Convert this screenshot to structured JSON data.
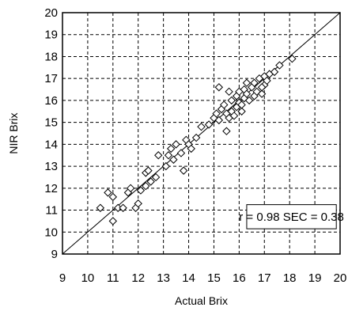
{
  "chart_data": {
    "type": "scatter",
    "title": "",
    "xlabel": "Actual Brix",
    "ylabel": "NIR Brix",
    "xlim": [
      9,
      20
    ],
    "ylim": [
      9,
      20
    ],
    "xticks": [
      "9",
      "10",
      "11",
      "12",
      "13",
      "14",
      "15",
      "16",
      "17",
      "18",
      "19",
      "20"
    ],
    "yticks": [
      "9",
      "10",
      "11",
      "12",
      "13",
      "14",
      "15",
      "16",
      "17",
      "18",
      "19",
      "20"
    ],
    "grid": true,
    "grid_style": "dashed",
    "marker": "diamond-open",
    "reference_line": {
      "from": [
        9,
        9
      ],
      "to": [
        20,
        20
      ]
    },
    "annotation": "r = 0.98  SEC = 0.38",
    "annotation_position": "bottom-right",
    "points": [
      [
        10.5,
        11.1
      ],
      [
        10.8,
        11.8
      ],
      [
        11.0,
        10.5
      ],
      [
        11.0,
        11.6
      ],
      [
        11.2,
        11.1
      ],
      [
        11.4,
        11.1
      ],
      [
        11.6,
        11.8
      ],
      [
        11.7,
        12.0
      ],
      [
        11.9,
        11.1
      ],
      [
        12.0,
        11.3
      ],
      [
        12.1,
        11.9
      ],
      [
        12.3,
        12.1
      ],
      [
        12.3,
        12.7
      ],
      [
        12.4,
        12.8
      ],
      [
        12.5,
        12.3
      ],
      [
        12.7,
        12.5
      ],
      [
        12.8,
        13.5
      ],
      [
        13.1,
        13.0
      ],
      [
        13.2,
        13.5
      ],
      [
        13.3,
        13.8
      ],
      [
        13.4,
        13.3
      ],
      [
        13.5,
        14.0
      ],
      [
        13.7,
        13.6
      ],
      [
        13.8,
        12.8
      ],
      [
        13.9,
        14.2
      ],
      [
        14.0,
        14.0
      ],
      [
        14.1,
        13.8
      ],
      [
        14.3,
        14.3
      ],
      [
        14.5,
        14.8
      ],
      [
        14.8,
        14.9
      ],
      [
        15.0,
        15.2
      ],
      [
        15.1,
        15.4
      ],
      [
        15.2,
        15.1
      ],
      [
        15.3,
        15.6
      ],
      [
        15.4,
        15.8
      ],
      [
        15.5,
        15.4
      ],
      [
        15.5,
        14.6
      ],
      [
        15.6,
        15.2
      ],
      [
        15.7,
        15.5
      ],
      [
        15.7,
        16.0
      ],
      [
        15.8,
        15.3
      ],
      [
        15.9,
        15.7
      ],
      [
        15.9,
        16.2
      ],
      [
        16.0,
        16.4
      ],
      [
        16.0,
        15.9
      ],
      [
        16.1,
        15.5
      ],
      [
        16.1,
        15.8
      ],
      [
        16.2,
        16.1
      ],
      [
        16.2,
        16.5
      ],
      [
        16.3,
        16.3
      ],
      [
        16.3,
        16.8
      ],
      [
        16.4,
        16.0
      ],
      [
        16.5,
        16.6
      ],
      [
        16.6,
        16.2
      ],
      [
        16.6,
        16.8
      ],
      [
        16.7,
        16.4
      ],
      [
        16.8,
        17.0
      ],
      [
        16.9,
        16.3
      ],
      [
        17.0,
        16.7
      ],
      [
        17.0,
        17.1
      ],
      [
        17.1,
        16.9
      ],
      [
        17.2,
        17.2
      ],
      [
        17.4,
        17.3
      ],
      [
        17.6,
        17.6
      ],
      [
        18.1,
        17.9
      ],
      [
        15.2,
        16.6
      ],
      [
        15.6,
        16.4
      ],
      [
        16.9,
        16.6
      ]
    ]
  }
}
